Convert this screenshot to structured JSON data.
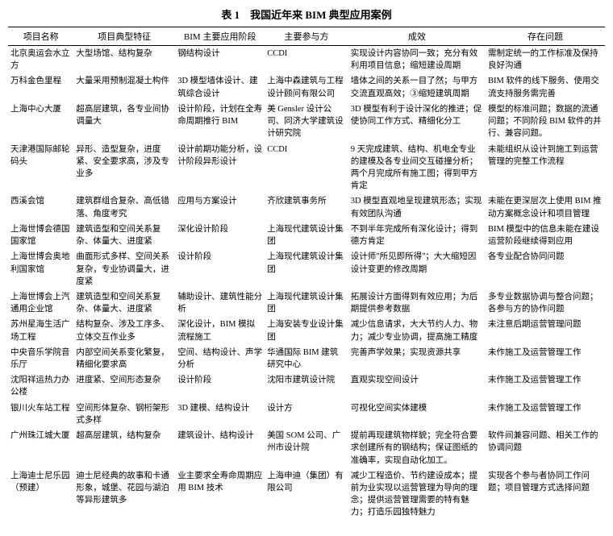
{
  "title": "表 1　我国近年来 BIM 典型应用案例",
  "columns": [
    "项目名称",
    "项目典型特征",
    "BIM 主要应用阶段",
    "主要参与方",
    "成效",
    "存在问题"
  ],
  "rows": [
    {
      "c1": "北京奥运会水立方",
      "c2": "大型场馆、结构复杂",
      "c3": "钢结构设计",
      "c4": "CCDI",
      "c5": "实现设计内容协同一致；充分有效利用项目信息；缩短建设周期",
      "c6": "需制定统一的工作标准及保持良好沟通"
    },
    {
      "c1": "万科金色里程",
      "c2": "大量采用预制混凝土构件",
      "c3": "3D 模型墙体设计、建筑综合设计",
      "c4": "上海中森建筑与工程设计顾问有限公司",
      "c5": "墙体之间的关系一目了然；与甲方交流直观高效；③缩短建筑周期",
      "c6": "BIM 软件的线下服务、使用交流支持服务需完善"
    },
    {
      "c1": "上海中心大厦",
      "c2": "超高层建筑，各专业间协调量大",
      "c3": "设计阶段，计划在全寿命周期推行 BIM",
      "c4": "美 Gensler 设计公司、同济大学建筑设计研究院",
      "c5": "3D 模型有利于设计深化的推进；促使协同工作方式、精细化分工",
      "c6": "模型的标准问题；数据的流通问题；不同阶段 BIM 软件的并行、兼容问题。"
    },
    {
      "c1": "天津港国际邮轮码头",
      "c2": "异形、造型复杂，进度紧、安全要求高，涉及专业多",
      "c3": "设计前期功能分析，设计阶段异形设计",
      "c4": "CCDI",
      "c5": "9 天完成建筑、结构、机电全专业的建模及各专业间交互碰撞分析；两个月完成所有施工图；得到甲方肯定",
      "c6": "未能组织从设计到施工到运营管理的完整工作流程"
    },
    {
      "c1": "西溪会馆",
      "c2": "建筑群组合复杂、高低错落、角度考究",
      "c3": "应用与方案设计",
      "c4": "齐欣建筑事务所",
      "c5": "3D 模型直观地呈现建筑形态；实现有效团队沟通",
      "c6": "未能在更深层次上使用 BIM 推动方案概念设计和项目管理"
    },
    {
      "c1": "上海世博会德国国家馆",
      "c2": "建筑造型和空间关系复杂、体量大、进度紧",
      "c3": "深化设计阶段",
      "c4": "上海现代建筑设计集团",
      "c5": "不到半年完成所有深化设计；得到德方肯定",
      "c6": "BIM 模型中的信息未能在建设运营阶段继续得到应用"
    },
    {
      "c1": "上海世博会奥地利国家馆",
      "c2": "曲面形式多样、空间关系复杂，专业协调量大，进度紧",
      "c3": "设计阶段",
      "c4": "上海现代建筑设计集团",
      "c5": "设计师\"所见即所得\"；大大缩短因设计变更的修改周期",
      "c6": "各专业配合协同问题"
    },
    {
      "c1": "上海世博会上汽通用企业馆",
      "c2": "建筑造型和空间关系复杂、体量大、进度紧",
      "c3": "辅助设计、建筑性能分析",
      "c4": "上海现代建筑设计集团",
      "c5": "拓展设计方面得到有效应用；为后期提供参考数据",
      "c6": "多专业数据协调与整合问题；各参与方的协作问题"
    },
    {
      "c1": "苏州星海生活广场工程",
      "c2": "结构复杂、涉及工序多、立体交互作业多",
      "c3": "深化设计，BIM 模拟流程施工",
      "c4": "上海安装专业设计集团",
      "c5": "减少信息请求，大大节约人力、物力；减少专业协调，提高施工精度",
      "c6": "未注意后期运营管理问题"
    },
    {
      "c1": "中央音乐学院音乐厅",
      "c2": "内部空间关系变化繁复，精细化要求高",
      "c3": "空间、结构设计、声学分析",
      "c4": "华通国际 BIM 建筑研究中心",
      "c5": "完善声学效果；实现资源共享",
      "c6": "未作施工及运营管理工作"
    },
    {
      "c1": "沈阳祥运热力办公楼",
      "c2": "进度紧、空间形态复杂",
      "c3": "设计阶段",
      "c4": "沈阳市建筑设计院",
      "c5": "直观实现空间设计",
      "c6": "未作施工及运营管理工作"
    },
    {
      "c1": "银川火车站工程",
      "c2": "空间形体复杂、钢桁架形式多样",
      "c3": "3D 建模、结构设计",
      "c4": "设计方",
      "c5": "可视化空间实体建模",
      "c6": "未作施工及运营管理工作"
    },
    {
      "c1": "广州珠江城大厦",
      "c2": "超高层建筑，结构复杂",
      "c3": "建筑设计、结构设计",
      "c4": "美国 SOM 公司、广州市设计院",
      "c5": "提前再现建筑物样貌；完全符合要求创建所有的钢结构；保证图纸的准确率，实现自动化加工。",
      "c6": "软件间兼容问题、相关工作的协调问题"
    },
    {
      "c1": "上海迪士尼乐园（预建）",
      "c2": "迪士尼经典的故事和卡通形象，城堡、花园与湖泊等异形建筑多",
      "c3": "业主要求全寿命周期应用 BIM 技术",
      "c4": "上海申迪（集团）有限公司",
      "c5": "减少工程造价、节约建设成本；提前为业实现以运营管理为导向的理念；提供运营管理需要的特有魅力；打造乐园独特魅力",
      "c6": "实现各个参与者协同工作问题；项目管理方式选择问题"
    }
  ]
}
